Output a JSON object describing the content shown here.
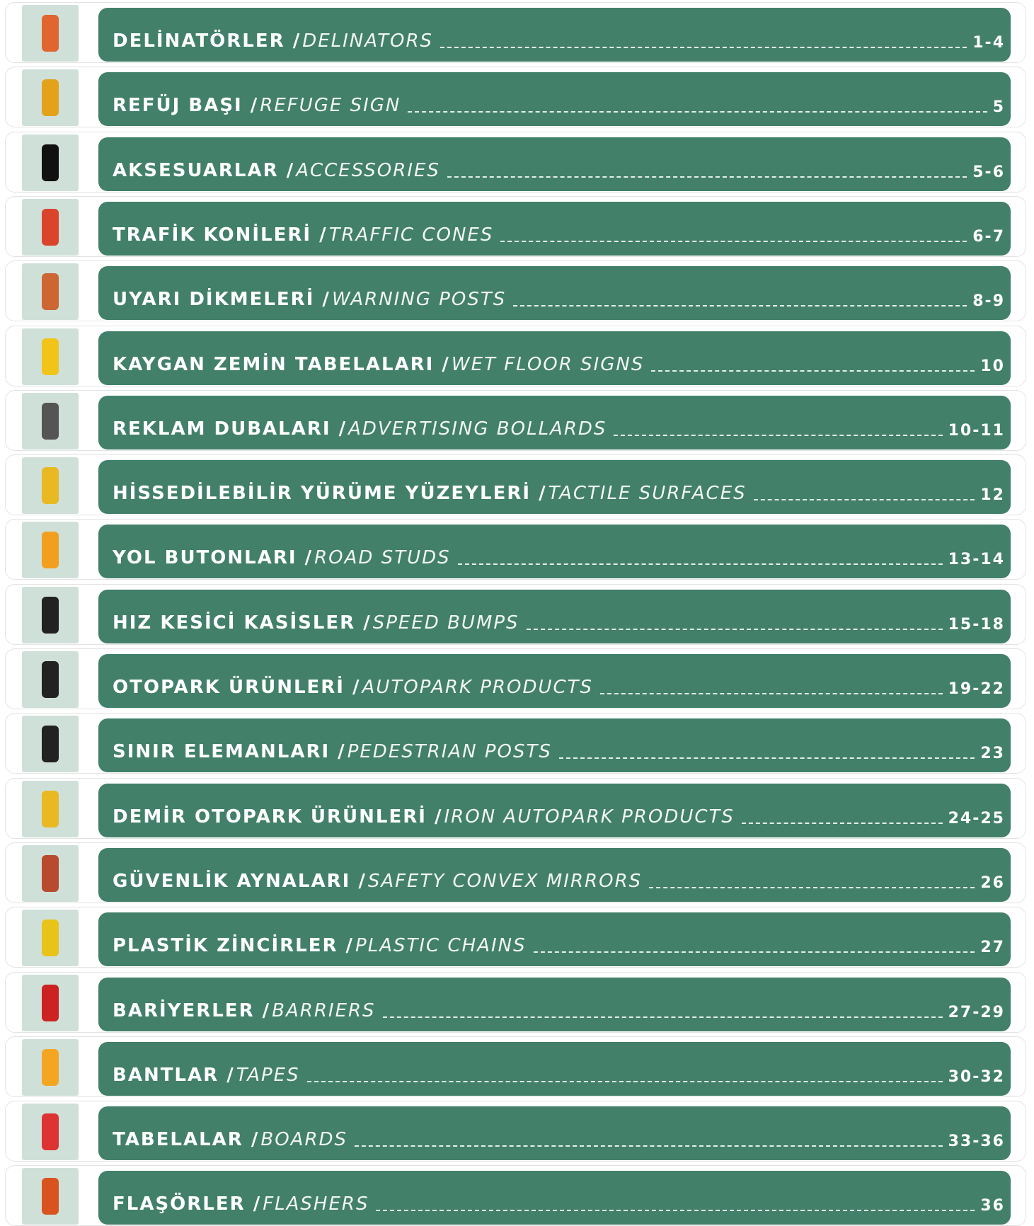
{
  "rows": [
    {
      "tr": "DELİNATÖRLER /",
      "en": "DELINATORS",
      "pages": "1-4"
    },
    {
      "tr": "REFÜJ BAŞI /",
      "en": "REFUGE SIGN",
      "pages": "5"
    },
    {
      "tr": "AKSESUARLAR /",
      "en": "ACCESSORIES",
      "pages": "5-6"
    },
    {
      "tr": "TRAFİK KONİLERİ /",
      "en": "TRAFFIC CONES",
      "pages": "6-7"
    },
    {
      "tr": "UYARI DİKMELERİ /",
      "en": "WARNING POSTS",
      "pages": "8-9"
    },
    {
      "tr": "KAYGAN ZEMİN TABELALARI /",
      "en": "WET FLOOR SIGNS",
      "pages": "10"
    },
    {
      "tr": "REKLAM DUBALARI /",
      "en": "ADVERTISING BOLLARDS",
      "pages": "10-11"
    },
    {
      "tr": "HİSSEDİLEBİLİR YÜRÜME YÜZEYLERİ /",
      "en": "TACTILE SURFACES",
      "pages": "12"
    },
    {
      "tr": "YOL BUTONLARI /",
      "en": "ROAD STUDS",
      "pages": "13-14"
    },
    {
      "tr": "HIZ KESİCİ KASİSLER /",
      "en": "SPEED BUMPS",
      "pages": "15-18"
    },
    {
      "tr": "OTOPARK ÜRÜNLERİ /",
      "en": "AUTOPARK PRODUCTS",
      "pages": "19-22"
    },
    {
      "tr": "SINIR ELEMANLARI /",
      "en": "PEDESTRIAN POSTS",
      "pages": "23"
    },
    {
      "tr": "DEMİR OTOPARK ÜRÜNLERİ /",
      "en": "IRON AUTOPARK PRODUCTS",
      "pages": "24-25"
    },
    {
      "tr": "GÜVENLİK AYNALARI /",
      "en": "SAFETY CONVEX MIRRORS",
      "pages": "26"
    },
    {
      "tr": "PLASTİK ZİNCİRLER /",
      "en": "PLASTIC CHAINS",
      "pages": "27"
    },
    {
      "tr": "BARİYERLER /",
      "en": "BARRIERS",
      "pages": "27-29"
    },
    {
      "tr": "BANTLAR /",
      "en": "TAPES",
      "pages": "30-32"
    },
    {
      "tr": "TABELALAR /",
      "en": "BOARDS",
      "pages": "33-36"
    },
    {
      "tr": "FLAŞÖRLER /",
      "en": "FLASHERS",
      "pages": "36"
    }
  ]
}
